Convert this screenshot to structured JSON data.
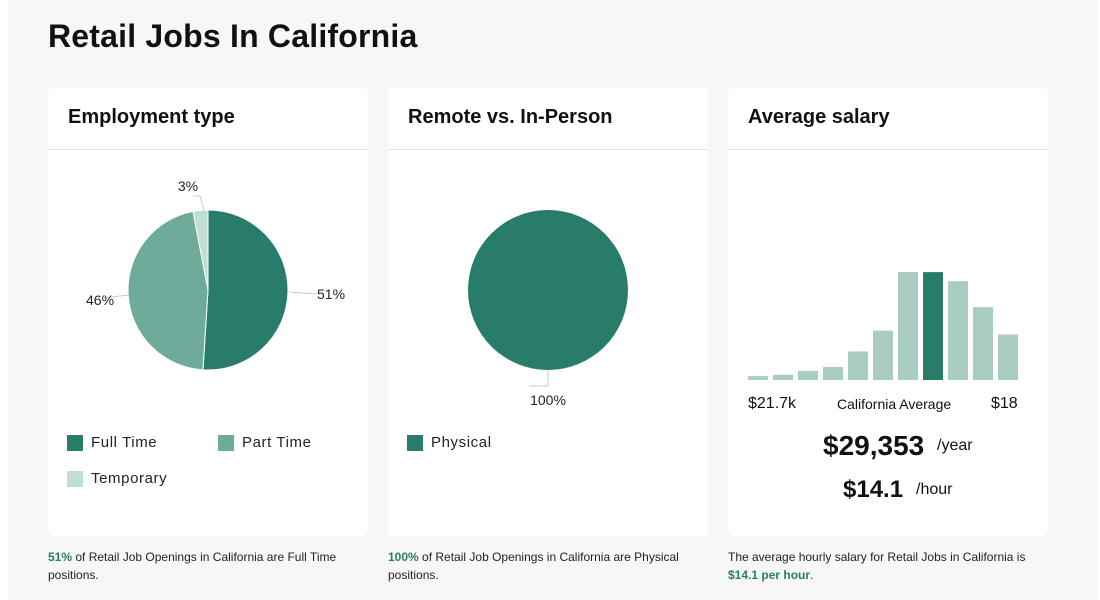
{
  "page": {
    "title": "Retail Jobs In California"
  },
  "cards": {
    "employment": {
      "title": "Employment type",
      "legend": [
        "Full Time",
        "Part Time",
        "Temporary"
      ]
    },
    "remote": {
      "title": "Remote vs. In-Person",
      "legend": [
        "Physical"
      ]
    },
    "salary": {
      "title": "Average salary",
      "min_label": "$21.7k",
      "avg_label": "California Average",
      "max_label": "$18",
      "yearly": "$29,353",
      "yearly_unit": "/year",
      "hourly": "$14.1",
      "hourly_unit": "/hour"
    }
  },
  "captions": {
    "employment": {
      "highlight": "51%",
      "text": " of Retail Job Openings in California are Full Time positions."
    },
    "remote": {
      "highlight": "100%",
      "text": " of Retail Job Openings in California are Physical positions."
    },
    "salary": {
      "text": "The average hourly salary for Retail Jobs in California is ",
      "highlight": "$14.1 per hour",
      "suffix": "."
    }
  },
  "colors": {
    "dark": "#287d6a",
    "medium": "#6fab9b",
    "light": "#a9cdc3",
    "pale": "#c2ddd5"
  },
  "chart_data": [
    {
      "type": "pie",
      "title": "Employment type",
      "categories": [
        "Full Time",
        "Part Time",
        "Temporary"
      ],
      "values": [
        51,
        46,
        3
      ],
      "labels": [
        "51%",
        "46%",
        "3%"
      ],
      "colors": [
        "#287d6a",
        "#6fab9b",
        "#c2ddd5"
      ]
    },
    {
      "type": "pie",
      "title": "Remote vs. In-Person",
      "categories": [
        "Physical"
      ],
      "values": [
        100
      ],
      "labels": [
        "100%"
      ],
      "colors": [
        "#287d6a"
      ]
    },
    {
      "type": "bar",
      "title": "Average salary",
      "values": [
        3,
        4,
        7,
        10,
        22,
        38,
        83,
        83,
        76,
        56,
        35
      ],
      "highlight_index": 7,
      "ylim": [
        0,
        100
      ],
      "xlabel_left": "$21.7k",
      "xlabel_center": "California Average",
      "xlabel_right": "$18"
    }
  ]
}
